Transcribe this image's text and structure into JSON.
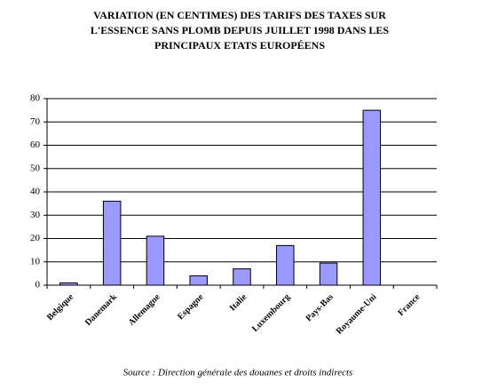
{
  "chart_data": {
    "type": "bar",
    "title": [
      "VARIATION (EN CENTIMES) DES TARIFS DES TAXES SUR",
      "L'ESSENCE SANS PLOMB DEPUIS JUILLET 1998 DANS  LES",
      "PRINCIPAUX ETATS EUROPÉENS"
    ],
    "categories": [
      "Belgique",
      "Danemark",
      "Allemagne",
      "Espagne",
      "Italie",
      "Luxembourg",
      "Pays-Bas",
      "Royaume-Uni",
      "France"
    ],
    "values": [
      1,
      36,
      21,
      4,
      7,
      17,
      9.5,
      75,
      0
    ],
    "color": "#9999ff",
    "ylim": [
      0,
      80
    ],
    "yticks": [
      0,
      10,
      20,
      30,
      40,
      50,
      60,
      70,
      80
    ],
    "grid": true,
    "source": "Source : Direction générale des douanes et droits indirects"
  }
}
